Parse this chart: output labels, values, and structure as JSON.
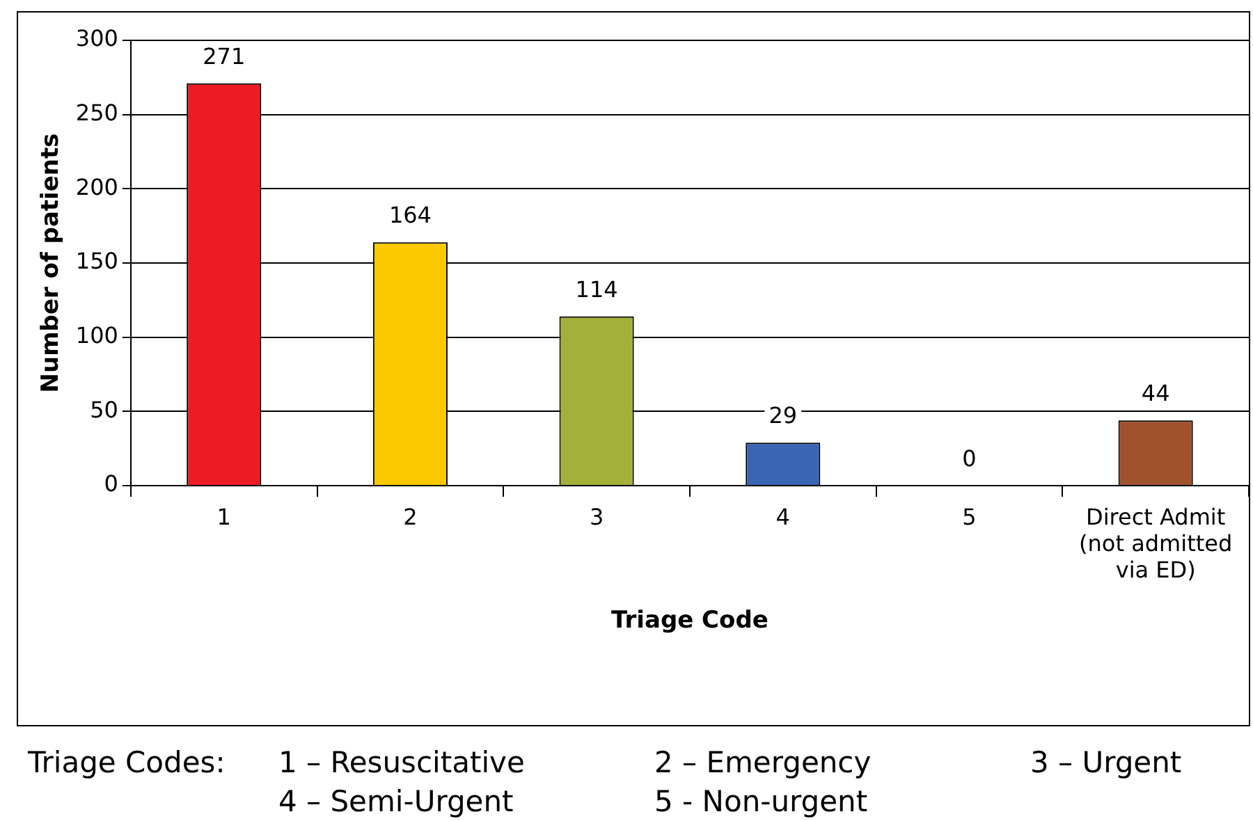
{
  "chart_data": {
    "type": "bar",
    "xlabel": "Triage Code",
    "ylabel": "Number of patients",
    "categories": [
      "1",
      "2",
      "3",
      "4",
      "5",
      "Direct Admit (not admitted via ED)"
    ],
    "values": [
      271,
      164,
      114,
      29,
      0,
      44
    ],
    "colors": [
      "#ed1c24",
      "#fcc800",
      "#a4b03a",
      "#3a65b5",
      "#7f7f7f",
      "#a0522d"
    ],
    "ylim": [
      0,
      300
    ],
    "yticks": [
      0,
      50,
      100,
      150,
      200,
      250,
      300
    ],
    "grid": "y",
    "legend": false,
    "data_labels": true,
    "annotations": [
      "Triage Codes:",
      "1 – Resuscitative",
      "2 – Emergency",
      "3 – Urgent",
      "4 – Semi-Urgent",
      "5 - Non-urgent"
    ]
  }
}
